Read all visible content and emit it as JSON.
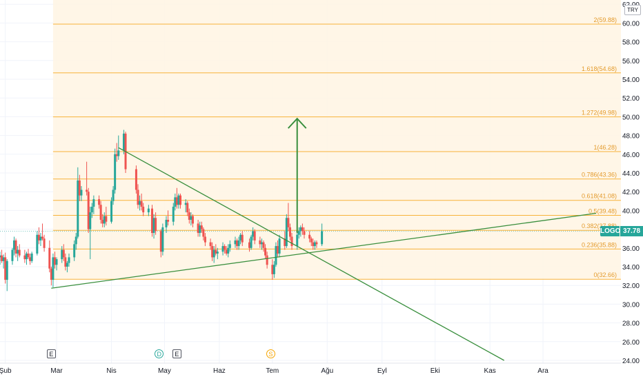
{
  "currency_label": "TRY",
  "symbol": "LOGO",
  "last_price": "37.78",
  "colors": {
    "up": "#26a69a",
    "down": "#ef5350",
    "fib_line": "#f7b239",
    "fib_label": "#e39a2b",
    "fib_fill": "#fff4e3",
    "trend": "#388e3c"
  },
  "events": [
    {
      "type": "E",
      "date": "2024-02-27"
    },
    {
      "type": "D",
      "date": "2024-04-28"
    },
    {
      "type": "E",
      "date": "2024-05-08"
    },
    {
      "type": "S",
      "date": "2024-06-30"
    }
  ],
  "chart_data": {
    "type": "candlestick",
    "x_axis": {
      "start": "2024-01-29",
      "end": "2024-12-31",
      "tick_labels": [
        "Şub",
        "Mar",
        "Nis",
        "May",
        "Haz",
        "Tem",
        "Ağu",
        "Eyl",
        "Eki",
        "Kas",
        "Ara"
      ],
      "tick_dates": [
        "2024-02-01",
        "2024-03-01",
        "2024-04-01",
        "2024-05-01",
        "2024-06-01",
        "2024-07-01",
        "2024-08-01",
        "2024-09-01",
        "2024-10-01",
        "2024-11-01",
        "2024-12-01"
      ]
    },
    "y_axis": {
      "position": "right",
      "ylim": [
        23.7,
        62.5
      ],
      "tick_labels": [
        "24.00",
        "26.00",
        "28.00",
        "30.00",
        "32.00",
        "34.00",
        "36.00",
        "38.00",
        "40.00",
        "42.00",
        "44.00",
        "46.00",
        "48.00",
        "50.00",
        "52.00",
        "54.00",
        "56.00",
        "58.00",
        "60.00",
        "62.00"
      ]
    },
    "fibonacci_levels": [
      {
        "ratio": "0",
        "price": 32.66,
        "label": "0(32.66)"
      },
      {
        "ratio": "0.236",
        "price": 35.88,
        "label": "0.236(35.88)"
      },
      {
        "ratio": "0.382",
        "price": 37.88,
        "label": "0.382(37.88)"
      },
      {
        "ratio": "0.5",
        "price": 39.48,
        "label": "0.5(39.48)"
      },
      {
        "ratio": "0.618",
        "price": 41.08,
        "label": "0.618(41.08)"
      },
      {
        "ratio": "0.786",
        "price": 43.36,
        "label": "0.786(43.36)"
      },
      {
        "ratio": "1",
        "price": 46.28,
        "label": "1(46.28)"
      },
      {
        "ratio": "1.272",
        "price": 49.98,
        "label": "1.272(49.98)"
      },
      {
        "ratio": "1.618",
        "price": 54.68,
        "label": "1.618(54.68)"
      },
      {
        "ratio": "2",
        "price": 59.88,
        "label": "2(59.88)"
      }
    ],
    "fibonacci_start_date": "2024-02-28",
    "trendlines": [
      {
        "from": {
          "date": "2024-02-27",
          "price": 31.7
        },
        "to": {
          "date": "2024-12-31",
          "price": 39.7
        }
      },
      {
        "from": {
          "date": "2024-04-05",
          "price": 46.7
        },
        "to": {
          "date": "2024-11-09",
          "price": 24.0
        }
      }
    ],
    "target_arrow": {
      "date": "2024-07-15",
      "from_price": 37.6,
      "to_price": 49.8
    },
    "candles": [
      {
        "date": "2024-01-29",
        "o": 35.0,
        "h": 35.6,
        "l": 34.2,
        "c": 35.2
      },
      {
        "date": "2024-01-30",
        "o": 35.2,
        "h": 35.8,
        "l": 34.4,
        "c": 34.6
      },
      {
        "date": "2024-01-31",
        "o": 34.6,
        "h": 35.3,
        "l": 33.8,
        "c": 35.0
      },
      {
        "date": "2024-02-01",
        "o": 35.0,
        "h": 35.5,
        "l": 32.2,
        "c": 32.6
      },
      {
        "date": "2024-02-02",
        "o": 32.6,
        "h": 34.8,
        "l": 31.4,
        "c": 34.6
      },
      {
        "date": "2024-02-05",
        "o": 34.6,
        "h": 36.0,
        "l": 34.2,
        "c": 35.8
      },
      {
        "date": "2024-02-06",
        "o": 35.8,
        "h": 37.2,
        "l": 35.2,
        "c": 36.8
      },
      {
        "date": "2024-02-07",
        "o": 36.8,
        "h": 37.0,
        "l": 35.0,
        "c": 35.4
      },
      {
        "date": "2024-02-08",
        "o": 35.4,
        "h": 36.2,
        "l": 34.6,
        "c": 35.8
      },
      {
        "date": "2024-02-09",
        "o": 35.8,
        "h": 36.4,
        "l": 35.0,
        "c": 35.2
      },
      {
        "date": "2024-02-12",
        "o": 35.2,
        "h": 35.8,
        "l": 34.4,
        "c": 34.8
      },
      {
        "date": "2024-02-13",
        "o": 34.8,
        "h": 35.6,
        "l": 34.2,
        "c": 35.4
      },
      {
        "date": "2024-02-14",
        "o": 35.4,
        "h": 35.9,
        "l": 34.8,
        "c": 35.0
      },
      {
        "date": "2024-02-15",
        "o": 35.0,
        "h": 35.4,
        "l": 34.2,
        "c": 34.6
      },
      {
        "date": "2024-02-16",
        "o": 34.6,
        "h": 35.6,
        "l": 34.4,
        "c": 35.4
      },
      {
        "date": "2024-02-19",
        "o": 35.4,
        "h": 37.8,
        "l": 35.2,
        "c": 37.4
      },
      {
        "date": "2024-02-20",
        "o": 37.4,
        "h": 38.2,
        "l": 36.4,
        "c": 36.8
      },
      {
        "date": "2024-02-21",
        "o": 36.8,
        "h": 37.6,
        "l": 36.2,
        "c": 37.2
      },
      {
        "date": "2024-02-22",
        "o": 37.2,
        "h": 38.6,
        "l": 36.8,
        "c": 37.0
      },
      {
        "date": "2024-02-23",
        "o": 37.0,
        "h": 37.4,
        "l": 35.6,
        "c": 36.0
      },
      {
        "date": "2024-02-26",
        "o": 36.0,
        "h": 36.8,
        "l": 33.4,
        "c": 33.8
      },
      {
        "date": "2024-02-27",
        "o": 33.8,
        "h": 34.0,
        "l": 32.0,
        "c": 32.6
      },
      {
        "date": "2024-02-28",
        "o": 32.6,
        "h": 35.4,
        "l": 31.8,
        "c": 35.0
      },
      {
        "date": "2024-02-29",
        "o": 35.0,
        "h": 35.6,
        "l": 33.8,
        "c": 34.2
      },
      {
        "date": "2024-03-01",
        "o": 34.2,
        "h": 35.0,
        "l": 33.6,
        "c": 34.8
      },
      {
        "date": "2024-03-04",
        "o": 34.8,
        "h": 36.2,
        "l": 34.4,
        "c": 35.8
      },
      {
        "date": "2024-03-05",
        "o": 35.8,
        "h": 36.4,
        "l": 34.6,
        "c": 35.0
      },
      {
        "date": "2024-03-06",
        "o": 35.0,
        "h": 35.4,
        "l": 33.6,
        "c": 34.0
      },
      {
        "date": "2024-03-07",
        "o": 34.0,
        "h": 34.6,
        "l": 33.4,
        "c": 34.4
      },
      {
        "date": "2024-03-08",
        "o": 34.4,
        "h": 35.4,
        "l": 34.0,
        "c": 35.0
      },
      {
        "date": "2024-03-11",
        "o": 35.0,
        "h": 36.8,
        "l": 34.6,
        "c": 36.4
      },
      {
        "date": "2024-03-12",
        "o": 36.4,
        "h": 37.6,
        "l": 35.8,
        "c": 37.2
      },
      {
        "date": "2024-03-13",
        "o": 37.2,
        "h": 44.6,
        "l": 37.0,
        "c": 43.2
      },
      {
        "date": "2024-03-14",
        "o": 43.2,
        "h": 43.8,
        "l": 41.0,
        "c": 41.6
      },
      {
        "date": "2024-03-15",
        "o": 41.6,
        "h": 42.6,
        "l": 41.0,
        "c": 42.2
      },
      {
        "date": "2024-03-18",
        "o": 42.2,
        "h": 45.2,
        "l": 41.6,
        "c": 42.0
      },
      {
        "date": "2024-03-19",
        "o": 42.0,
        "h": 42.4,
        "l": 37.6,
        "c": 38.0
      },
      {
        "date": "2024-03-20",
        "o": 38.0,
        "h": 40.4,
        "l": 34.8,
        "c": 39.8
      },
      {
        "date": "2024-03-21",
        "o": 39.8,
        "h": 40.8,
        "l": 39.2,
        "c": 40.4
      },
      {
        "date": "2024-03-22",
        "o": 40.4,
        "h": 41.6,
        "l": 39.6,
        "c": 41.2
      },
      {
        "date": "2024-03-25",
        "o": 41.2,
        "h": 41.6,
        "l": 40.2,
        "c": 40.6
      },
      {
        "date": "2024-03-26",
        "o": 40.6,
        "h": 41.0,
        "l": 38.6,
        "c": 39.0
      },
      {
        "date": "2024-03-27",
        "o": 39.0,
        "h": 39.6,
        "l": 38.2,
        "c": 38.6
      },
      {
        "date": "2024-03-28",
        "o": 38.6,
        "h": 39.8,
        "l": 38.2,
        "c": 39.4
      },
      {
        "date": "2024-03-29",
        "o": 39.4,
        "h": 40.4,
        "l": 38.4,
        "c": 38.8
      },
      {
        "date": "2024-04-01",
        "o": 38.8,
        "h": 41.4,
        "l": 38.6,
        "c": 41.0
      },
      {
        "date": "2024-04-02",
        "o": 41.0,
        "h": 42.6,
        "l": 40.6,
        "c": 42.2
      },
      {
        "date": "2024-04-03",
        "o": 42.2,
        "h": 46.6,
        "l": 41.8,
        "c": 46.0
      },
      {
        "date": "2024-04-04",
        "o": 46.0,
        "h": 47.2,
        "l": 45.2,
        "c": 45.8
      },
      {
        "date": "2024-04-05",
        "o": 45.8,
        "h": 48.0,
        "l": 45.4,
        "c": 46.4
      },
      {
        "date": "2024-04-08",
        "o": 46.4,
        "h": 48.6,
        "l": 46.0,
        "c": 48.2
      },
      {
        "date": "2024-04-09",
        "o": 48.2,
        "h": 48.4,
        "l": 44.0,
        "c": 44.4
      },
      {
        "date": "2024-04-15",
        "o": 44.4,
        "h": 44.8,
        "l": 41.8,
        "c": 42.2
      },
      {
        "date": "2024-04-16",
        "o": 42.2,
        "h": 42.8,
        "l": 40.2,
        "c": 40.6
      },
      {
        "date": "2024-04-17",
        "o": 40.6,
        "h": 41.6,
        "l": 40.0,
        "c": 41.0
      },
      {
        "date": "2024-04-18",
        "o": 41.0,
        "h": 41.8,
        "l": 40.0,
        "c": 40.4
      },
      {
        "date": "2024-04-19",
        "o": 40.4,
        "h": 40.8,
        "l": 39.4,
        "c": 39.8
      },
      {
        "date": "2024-04-22",
        "o": 39.8,
        "h": 40.6,
        "l": 39.4,
        "c": 40.2
      },
      {
        "date": "2024-04-24",
        "o": 40.2,
        "h": 40.6,
        "l": 37.2,
        "c": 37.6
      },
      {
        "date": "2024-04-25",
        "o": 37.6,
        "h": 39.6,
        "l": 37.0,
        "c": 39.2
      },
      {
        "date": "2024-04-26",
        "o": 39.2,
        "h": 39.8,
        "l": 37.4,
        "c": 37.8
      },
      {
        "date": "2024-04-29",
        "o": 37.8,
        "h": 38.0,
        "l": 35.0,
        "c": 35.6
      },
      {
        "date": "2024-04-30",
        "o": 35.6,
        "h": 38.6,
        "l": 35.2,
        "c": 38.2
      },
      {
        "date": "2024-05-02",
        "o": 38.2,
        "h": 39.4,
        "l": 37.6,
        "c": 39.0
      },
      {
        "date": "2024-05-03",
        "o": 39.0,
        "h": 40.0,
        "l": 38.4,
        "c": 38.8
      },
      {
        "date": "2024-05-06",
        "o": 38.8,
        "h": 40.8,
        "l": 38.4,
        "c": 40.4
      },
      {
        "date": "2024-05-07",
        "o": 40.4,
        "h": 41.8,
        "l": 40.0,
        "c": 41.4
      },
      {
        "date": "2024-05-08",
        "o": 41.4,
        "h": 42.4,
        "l": 40.2,
        "c": 40.6
      },
      {
        "date": "2024-05-09",
        "o": 40.6,
        "h": 41.8,
        "l": 40.2,
        "c": 41.6
      },
      {
        "date": "2024-05-10",
        "o": 41.6,
        "h": 41.8,
        "l": 40.2,
        "c": 40.6
      },
      {
        "date": "2024-05-13",
        "o": 40.6,
        "h": 41.2,
        "l": 39.8,
        "c": 40.8
      },
      {
        "date": "2024-05-14",
        "o": 40.8,
        "h": 41.0,
        "l": 39.4,
        "c": 39.8
      },
      {
        "date": "2024-05-15",
        "o": 39.8,
        "h": 40.2,
        "l": 38.6,
        "c": 39.0
      },
      {
        "date": "2024-05-16",
        "o": 39.0,
        "h": 39.8,
        "l": 38.4,
        "c": 39.4
      },
      {
        "date": "2024-05-17",
        "o": 39.4,
        "h": 39.6,
        "l": 38.2,
        "c": 38.6
      },
      {
        "date": "2024-05-20",
        "o": 38.6,
        "h": 39.0,
        "l": 37.2,
        "c": 37.6
      },
      {
        "date": "2024-05-21",
        "o": 37.6,
        "h": 38.8,
        "l": 37.2,
        "c": 38.4
      },
      {
        "date": "2024-05-22",
        "o": 38.4,
        "h": 38.8,
        "l": 37.6,
        "c": 38.0
      },
      {
        "date": "2024-05-23",
        "o": 38.0,
        "h": 38.2,
        "l": 36.8,
        "c": 37.2
      },
      {
        "date": "2024-05-24",
        "o": 37.2,
        "h": 37.6,
        "l": 36.2,
        "c": 36.6
      },
      {
        "date": "2024-05-27",
        "o": 36.6,
        "h": 37.0,
        "l": 35.8,
        "c": 36.2
      },
      {
        "date": "2024-05-28",
        "o": 36.2,
        "h": 36.6,
        "l": 34.6,
        "c": 35.0
      },
      {
        "date": "2024-05-29",
        "o": 35.0,
        "h": 36.2,
        "l": 34.4,
        "c": 35.8
      },
      {
        "date": "2024-05-30",
        "o": 35.8,
        "h": 36.4,
        "l": 35.2,
        "c": 35.4
      },
      {
        "date": "2024-05-31",
        "o": 35.4,
        "h": 36.0,
        "l": 34.8,
        "c": 35.6
      },
      {
        "date": "2024-06-03",
        "o": 35.6,
        "h": 36.6,
        "l": 35.2,
        "c": 36.2
      },
      {
        "date": "2024-06-04",
        "o": 36.2,
        "h": 36.4,
        "l": 35.4,
        "c": 35.8
      },
      {
        "date": "2024-06-05",
        "o": 35.8,
        "h": 36.2,
        "l": 35.2,
        "c": 35.4
      },
      {
        "date": "2024-06-06",
        "o": 35.4,
        "h": 36.4,
        "l": 35.0,
        "c": 36.0
      },
      {
        "date": "2024-06-07",
        "o": 36.0,
        "h": 36.8,
        "l": 35.6,
        "c": 36.4
      },
      {
        "date": "2024-06-10",
        "o": 36.4,
        "h": 37.2,
        "l": 36.0,
        "c": 36.8
      },
      {
        "date": "2024-06-11",
        "o": 36.8,
        "h": 37.0,
        "l": 35.8,
        "c": 36.2
      },
      {
        "date": "2024-06-12",
        "o": 36.2,
        "h": 37.2,
        "l": 35.8,
        "c": 36.8
      },
      {
        "date": "2024-06-13",
        "o": 36.8,
        "h": 37.6,
        "l": 36.4,
        "c": 37.4
      },
      {
        "date": "2024-06-14",
        "o": 37.4,
        "h": 37.8,
        "l": 36.2,
        "c": 36.6
      },
      {
        "date": "2024-06-18",
        "o": 36.6,
        "h": 37.0,
        "l": 35.6,
        "c": 36.0
      },
      {
        "date": "2024-06-19",
        "o": 36.0,
        "h": 37.4,
        "l": 35.8,
        "c": 37.2
      },
      {
        "date": "2024-06-20",
        "o": 37.2,
        "h": 38.2,
        "l": 36.8,
        "c": 37.8
      },
      {
        "date": "2024-06-21",
        "o": 37.8,
        "h": 38.0,
        "l": 36.4,
        "c": 36.8
      },
      {
        "date": "2024-06-24",
        "o": 36.8,
        "h": 37.2,
        "l": 36.0,
        "c": 36.4
      },
      {
        "date": "2024-06-25",
        "o": 36.4,
        "h": 37.0,
        "l": 35.8,
        "c": 36.6
      },
      {
        "date": "2024-06-26",
        "o": 36.6,
        "h": 36.8,
        "l": 35.6,
        "c": 36.0
      },
      {
        "date": "2024-06-27",
        "o": 36.0,
        "h": 36.4,
        "l": 34.8,
        "c": 35.2
      },
      {
        "date": "2024-06-28",
        "o": 35.2,
        "h": 35.6,
        "l": 33.8,
        "c": 34.2
      },
      {
        "date": "2024-07-01",
        "o": 34.2,
        "h": 34.8,
        "l": 32.6,
        "c": 33.2
      },
      {
        "date": "2024-07-02",
        "o": 33.2,
        "h": 34.6,
        "l": 32.8,
        "c": 34.2
      },
      {
        "date": "2024-07-03",
        "o": 34.2,
        "h": 36.6,
        "l": 34.0,
        "c": 36.2
      },
      {
        "date": "2024-07-04",
        "o": 36.2,
        "h": 36.8,
        "l": 35.0,
        "c": 35.4
      },
      {
        "date": "2024-07-05",
        "o": 35.4,
        "h": 37.4,
        "l": 35.0,
        "c": 37.0
      },
      {
        "date": "2024-07-08",
        "o": 37.0,
        "h": 37.8,
        "l": 35.8,
        "c": 36.2
      },
      {
        "date": "2024-07-09",
        "o": 36.2,
        "h": 39.6,
        "l": 36.0,
        "c": 39.2
      },
      {
        "date": "2024-07-10",
        "o": 39.2,
        "h": 40.8,
        "l": 37.8,
        "c": 38.2
      },
      {
        "date": "2024-07-11",
        "o": 38.2,
        "h": 38.6,
        "l": 36.8,
        "c": 37.2
      },
      {
        "date": "2024-07-12",
        "o": 37.2,
        "h": 37.6,
        "l": 35.8,
        "c": 36.2
      },
      {
        "date": "2024-07-15",
        "o": 36.2,
        "h": 37.6,
        "l": 35.8,
        "c": 37.4
      },
      {
        "date": "2024-07-16",
        "o": 37.4,
        "h": 38.2,
        "l": 37.0,
        "c": 37.8
      },
      {
        "date": "2024-07-17",
        "o": 37.8,
        "h": 38.4,
        "l": 37.2,
        "c": 38.2
      },
      {
        "date": "2024-07-18",
        "o": 38.2,
        "h": 38.6,
        "l": 37.4,
        "c": 37.8
      },
      {
        "date": "2024-07-19",
        "o": 37.8,
        "h": 38.2,
        "l": 37.0,
        "c": 37.4
      },
      {
        "date": "2024-07-22",
        "o": 37.4,
        "h": 37.8,
        "l": 36.6,
        "c": 37.0
      },
      {
        "date": "2024-07-23",
        "o": 37.0,
        "h": 37.2,
        "l": 36.2,
        "c": 36.6
      },
      {
        "date": "2024-07-24",
        "o": 36.6,
        "h": 37.0,
        "l": 35.8,
        "c": 36.2
      },
      {
        "date": "2024-07-25",
        "o": 36.2,
        "h": 36.8,
        "l": 35.8,
        "c": 36.6
      },
      {
        "date": "2024-07-26",
        "o": 36.6,
        "h": 36.8,
        "l": 36.0,
        "c": 36.4
      },
      {
        "date": "2024-07-29",
        "o": 36.4,
        "h": 38.6,
        "l": 36.2,
        "c": 37.78
      }
    ]
  }
}
